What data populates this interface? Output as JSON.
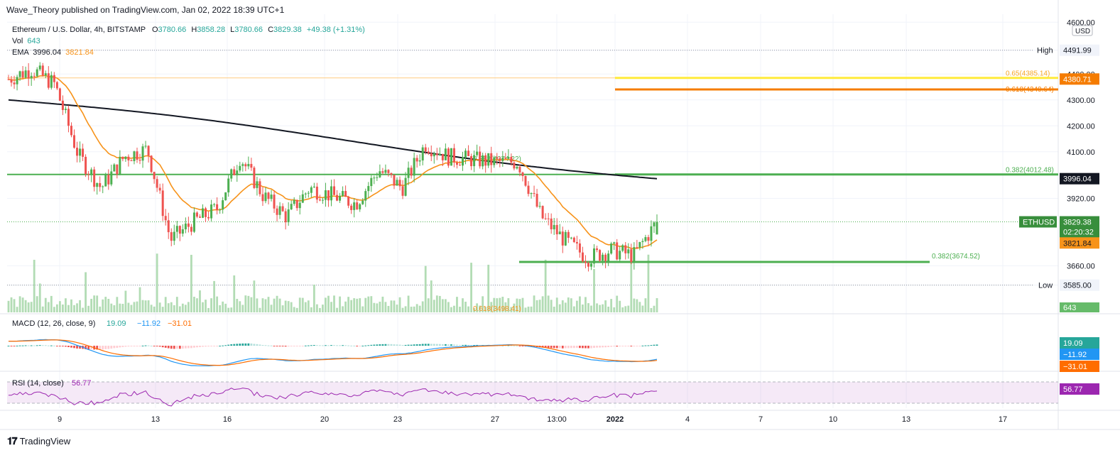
{
  "header": {
    "published": "Wave_Theory published on TradingView.com, Jan 02, 2022 18:39 UTC+1",
    "symbol": "Ethereum / U.S. Dollar, 4h, BITSTAMP",
    "ohlc": [
      {
        "k": "O",
        "v": "3780.66"
      },
      {
        "k": "H",
        "v": "3858.28"
      },
      {
        "k": "L",
        "v": "3780.66"
      },
      {
        "k": "C",
        "v": "3829.38"
      }
    ],
    "change": "+49.38 (+1.31%)",
    "vol_label": "Vol",
    "vol_value": "643",
    "ema_label": "EMA",
    "ema_value1": "3996.04",
    "ema_value2": "3821.84"
  },
  "footer": {
    "brand": "TradingView"
  },
  "colors": {
    "up": "#26a69a",
    "candle_up": "#4caf50",
    "down": "#ef5350",
    "ema_fast": "#f7931a",
    "ema_slow": "#131722",
    "fib_green": "#4caf50",
    "fib_yellow": "#ffeb3b",
    "fib_orange": "#f57c00",
    "macd": "#2196f3",
    "signal": "#ff6d00",
    "rsi": "#9c27b0"
  },
  "price_axis": {
    "unit": "USD",
    "ticks": [
      "4600.00",
      "4491.99",
      "4400.00",
      "4300.00",
      "4200.00",
      "4100.00",
      "3920.00",
      "3660.00",
      "3585.00"
    ],
    "tick_values": [
      4600,
      4491.99,
      4400,
      4300,
      4200,
      4100,
      3920,
      3660,
      3585
    ]
  },
  "labels": {
    "high": "High",
    "high_value": "4491.99",
    "low": "Low",
    "low_value": "3585.00",
    "symbol_tag": "ETHUSD",
    "last_price": "3829.38",
    "countdown": "02:20:32",
    "ema_fast_tag": "3821.84",
    "ema_slow_tag": "3996.04",
    "fib_4380_tag": "4380.71",
    "vol_tag": "643"
  },
  "fibs": [
    {
      "label": "0.65(4385.14)",
      "price": 4385.14,
      "color": "#ffeb3b"
    },
    {
      "label": "0.618(4340.64)",
      "price": 4340.64,
      "color": "#f57c00"
    },
    {
      "label": "0.382(4012.48)",
      "price": 4012.48,
      "color": "#4caf50"
    },
    {
      "label": "0.382(3674.52)",
      "price": 3674.52,
      "color": "#4caf50"
    },
    {
      "label": "0.382(4074.22)",
      "price": 4074.22,
      "color": "#4caf50"
    },
    {
      "label": "0.618(3498.41)",
      "price": 3498.41,
      "color": "#f7931a"
    }
  ],
  "macd": {
    "label": "MACD (12, 26, close, 9)",
    "v1": "19.09",
    "v2": "−11.92",
    "v3": "−31.01"
  },
  "rsi": {
    "label": "RSI (14, close)",
    "value": "56.77"
  },
  "time_axis": [
    "9",
    "13",
    "16",
    "20",
    "23",
    "27",
    "13:00",
    "2022",
    "4",
    "7",
    "10",
    "13",
    "17"
  ],
  "chart_data": {
    "type": "candlestick",
    "title": "Ethereum / U.S. Dollar, 4h, BITSTAMP",
    "ylim": [
      3520,
      4610
    ],
    "close_path": [
      {
        "date": "2021-12-07",
        "close": 4380
      },
      {
        "date": "2021-12-08",
        "close": 4420
      },
      {
        "date": "2021-12-09",
        "close": 4360
      },
      {
        "date": "2021-12-10",
        "close": 4090
      },
      {
        "date": "2021-12-11",
        "close": 3960
      },
      {
        "date": "2021-12-12",
        "close": 4080
      },
      {
        "date": "2021-12-13",
        "close": 4110
      },
      {
        "date": "2021-12-14",
        "close": 3760
      },
      {
        "date": "2021-12-15",
        "close": 3830
      },
      {
        "date": "2021-12-16",
        "close": 3880
      },
      {
        "date": "2021-12-16",
        "close": 4080
      },
      {
        "date": "2021-12-17",
        "close": 3930
      },
      {
        "date": "2021-12-18",
        "close": 3850
      },
      {
        "date": "2021-12-19",
        "close": 3960
      },
      {
        "date": "2021-12-20",
        "close": 3930
      },
      {
        "date": "2021-12-21",
        "close": 3900
      },
      {
        "date": "2021-12-22",
        "close": 4030
      },
      {
        "date": "2021-12-23",
        "close": 3960
      },
      {
        "date": "2021-12-23",
        "close": 4130
      },
      {
        "date": "2021-12-24",
        "close": 4080
      },
      {
        "date": "2021-12-25",
        "close": 4070
      },
      {
        "date": "2021-12-26",
        "close": 4060
      },
      {
        "date": "2021-12-27",
        "close": 4060
      },
      {
        "date": "2021-12-28",
        "close": 3850
      },
      {
        "date": "2021-12-29",
        "close": 3760
      },
      {
        "date": "2021-12-30",
        "close": 3690
      },
      {
        "date": "2021-12-31",
        "close": 3720
      },
      {
        "date": "2022-01-01",
        "close": 3700
      },
      {
        "date": "2022-01-02",
        "close": 3829.38
      }
    ],
    "series": [
      {
        "name": "EMA",
        "last": 3996.04
      },
      {
        "name": "EMA",
        "last": 3821.84
      }
    ]
  }
}
